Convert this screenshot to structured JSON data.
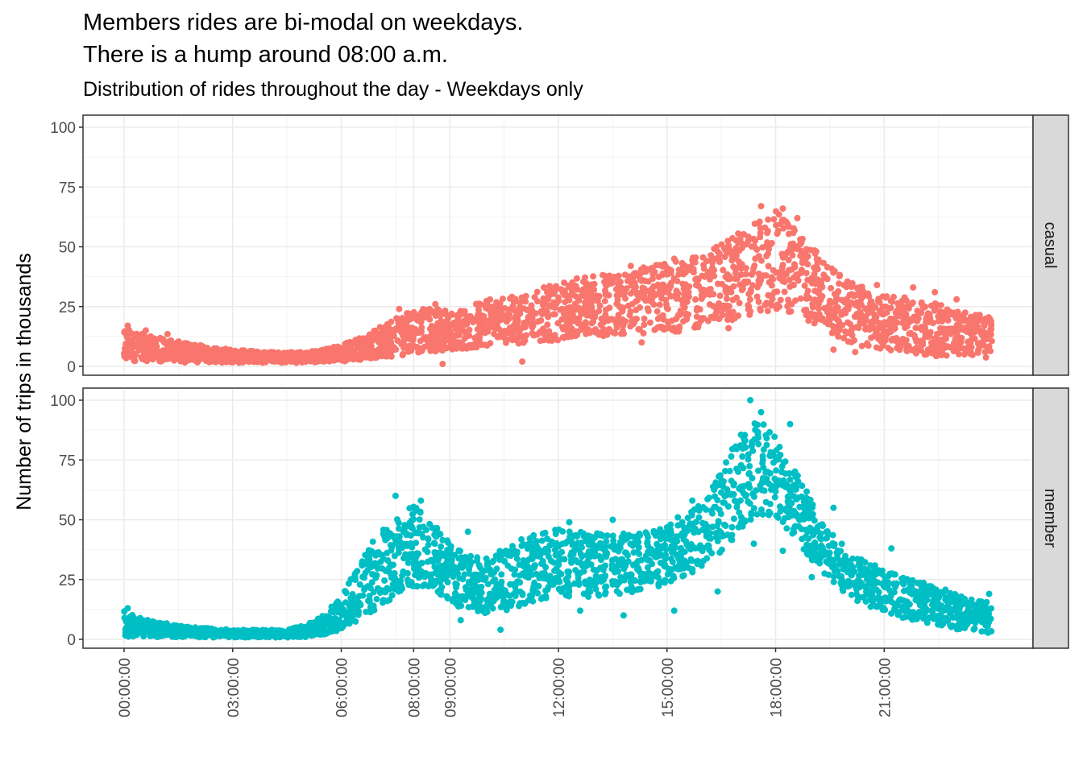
{
  "chart_data": {
    "type": "scatter",
    "title": "Members rides are bi-modal on weekdays.\nThere is a hump around 08:00 a.m.",
    "title_lines": [
      "Members rides are bi-modal on weekdays.",
      "There is a hump around 08:00 a.m."
    ],
    "subtitle": "Distribution of rides throughout the day - Weekdays only",
    "xlabel": "",
    "ylabel": "Number of trips in thousands",
    "x_unit": "hours of day",
    "xlim": [
      0,
      24
    ],
    "ylim": [
      0,
      100
    ],
    "x_ticks": [
      {
        "label": "00:00:00",
        "value": 0
      },
      {
        "label": "03:00:00",
        "value": 3
      },
      {
        "label": "06:00:00",
        "value": 6
      },
      {
        "label": "08:00:00",
        "value": 8
      },
      {
        "label": "09:00:00",
        "value": 9
      },
      {
        "label": "12:00:00",
        "value": 12
      },
      {
        "label": "15:00:00",
        "value": 15
      },
      {
        "label": "18:00:00",
        "value": 18
      },
      {
        "label": "21:00:00",
        "value": 21
      }
    ],
    "y_ticks": [
      0,
      25,
      50,
      75,
      100
    ],
    "grid": true,
    "legend": "none",
    "facets": [
      {
        "label": "casual",
        "color": "#F8766D",
        "envelope_x": [
          0,
          0.5,
          1,
          2,
          3,
          4,
          5,
          5.5,
          6,
          6.5,
          7,
          7.5,
          8,
          8.5,
          9,
          10,
          11,
          11.5,
          12,
          13,
          14,
          15,
          16,
          16.5,
          17,
          17.5,
          18,
          18.5,
          19,
          19.5,
          20,
          20.5,
          21,
          21.5,
          22,
          22.5,
          23,
          23.5,
          24
        ],
        "envelope_low": [
          2,
          2,
          2,
          1.5,
          1.5,
          1.5,
          1.5,
          2,
          2,
          2.5,
          3,
          4,
          5,
          6,
          7,
          8,
          9,
          10,
          11,
          12,
          13,
          14,
          16,
          18,
          20,
          22,
          24,
          22,
          18,
          14,
          10,
          8,
          7,
          6,
          5,
          4,
          3.5,
          3,
          2.5
        ],
        "envelope_high": [
          16,
          14,
          12,
          9,
          7,
          6,
          6,
          7,
          9,
          12,
          16,
          20,
          24,
          24,
          24,
          28,
          30,
          32,
          36,
          38,
          40,
          44,
          47,
          51,
          56,
          63,
          65,
          58,
          50,
          42,
          36,
          33,
          30,
          29,
          28,
          26,
          24,
          22,
          21
        ],
        "outliers": [
          [
            0.1,
            17
          ],
          [
            0.6,
            15
          ],
          [
            1.2,
            13.5
          ],
          [
            7.6,
            24
          ],
          [
            8.6,
            26
          ],
          [
            11.6,
            33
          ],
          [
            14.0,
            42
          ],
          [
            15.2,
            45
          ],
          [
            17.6,
            67
          ],
          [
            18.2,
            66
          ],
          [
            18.6,
            62
          ],
          [
            19.6,
            40
          ],
          [
            20.8,
            34
          ],
          [
            21.8,
            33
          ],
          [
            22.4,
            31
          ],
          [
            23.0,
            28
          ],
          [
            8.8,
            1
          ],
          [
            11,
            2
          ],
          [
            14.3,
            10
          ],
          [
            16.7,
            16
          ],
          [
            18.1,
            25
          ],
          [
            19.6,
            7
          ],
          [
            20.2,
            6
          ]
        ]
      },
      {
        "label": "member",
        "color": "#00BFC4",
        "envelope_x": [
          0,
          0.5,
          1,
          2,
          3,
          4,
          4.5,
          5,
          5.5,
          6,
          6.5,
          7,
          7.5,
          8,
          8.5,
          9,
          9.5,
          10,
          10.5,
          11,
          11.5,
          12,
          13,
          14,
          14.5,
          15,
          15.5,
          16,
          16.5,
          17,
          17.5,
          18,
          18.5,
          19,
          19.5,
          20,
          20.5,
          21,
          21.5,
          22,
          22.5,
          23,
          23.5,
          24
        ],
        "envelope_low": [
          1,
          1,
          1,
          0.8,
          0.8,
          0.8,
          0.8,
          1,
          2,
          4,
          8,
          13,
          18,
          22,
          20,
          15,
          12,
          11,
          12,
          14,
          16,
          17,
          18,
          19,
          21,
          23,
          26,
          30,
          36,
          44,
          52,
          50,
          42,
          33,
          25,
          18,
          14,
          11,
          9,
          7,
          5,
          4,
          3,
          2
        ],
        "envelope_high": [
          12,
          9,
          7,
          5,
          4,
          4,
          4,
          6,
          10,
          18,
          32,
          44,
          52,
          56,
          50,
          40,
          35,
          34,
          38,
          42,
          45,
          46,
          45,
          44,
          45,
          47,
          52,
          58,
          70,
          86,
          92,
          86,
          72,
          58,
          46,
          38,
          33,
          29,
          26,
          24,
          22,
          19,
          17,
          15
        ],
        "outliers": [
          [
            0.1,
            13
          ],
          [
            7.5,
            60
          ],
          [
            8.2,
            58
          ],
          [
            9.5,
            45
          ],
          [
            11.3,
            43
          ],
          [
            12.3,
            49
          ],
          [
            13.5,
            50
          ],
          [
            15.3,
            51
          ],
          [
            15.7,
            58
          ],
          [
            17.3,
            100
          ],
          [
            17.6,
            95
          ],
          [
            18.4,
            90
          ],
          [
            19.6,
            55
          ],
          [
            21.2,
            38
          ],
          [
            23.9,
            19
          ],
          [
            9.3,
            8
          ],
          [
            10.4,
            4
          ],
          [
            12.6,
            12
          ],
          [
            13.8,
            10
          ],
          [
            15.2,
            12
          ],
          [
            16.4,
            20
          ],
          [
            17.4,
            40
          ],
          [
            18.2,
            37
          ],
          [
            19.0,
            26
          ]
        ]
      }
    ]
  },
  "colors": {
    "panel_border": "#333333",
    "grid_major": "#ebebeb",
    "grid_minor": "#f2f2f2",
    "strip_fill": "#d9d9d9"
  }
}
